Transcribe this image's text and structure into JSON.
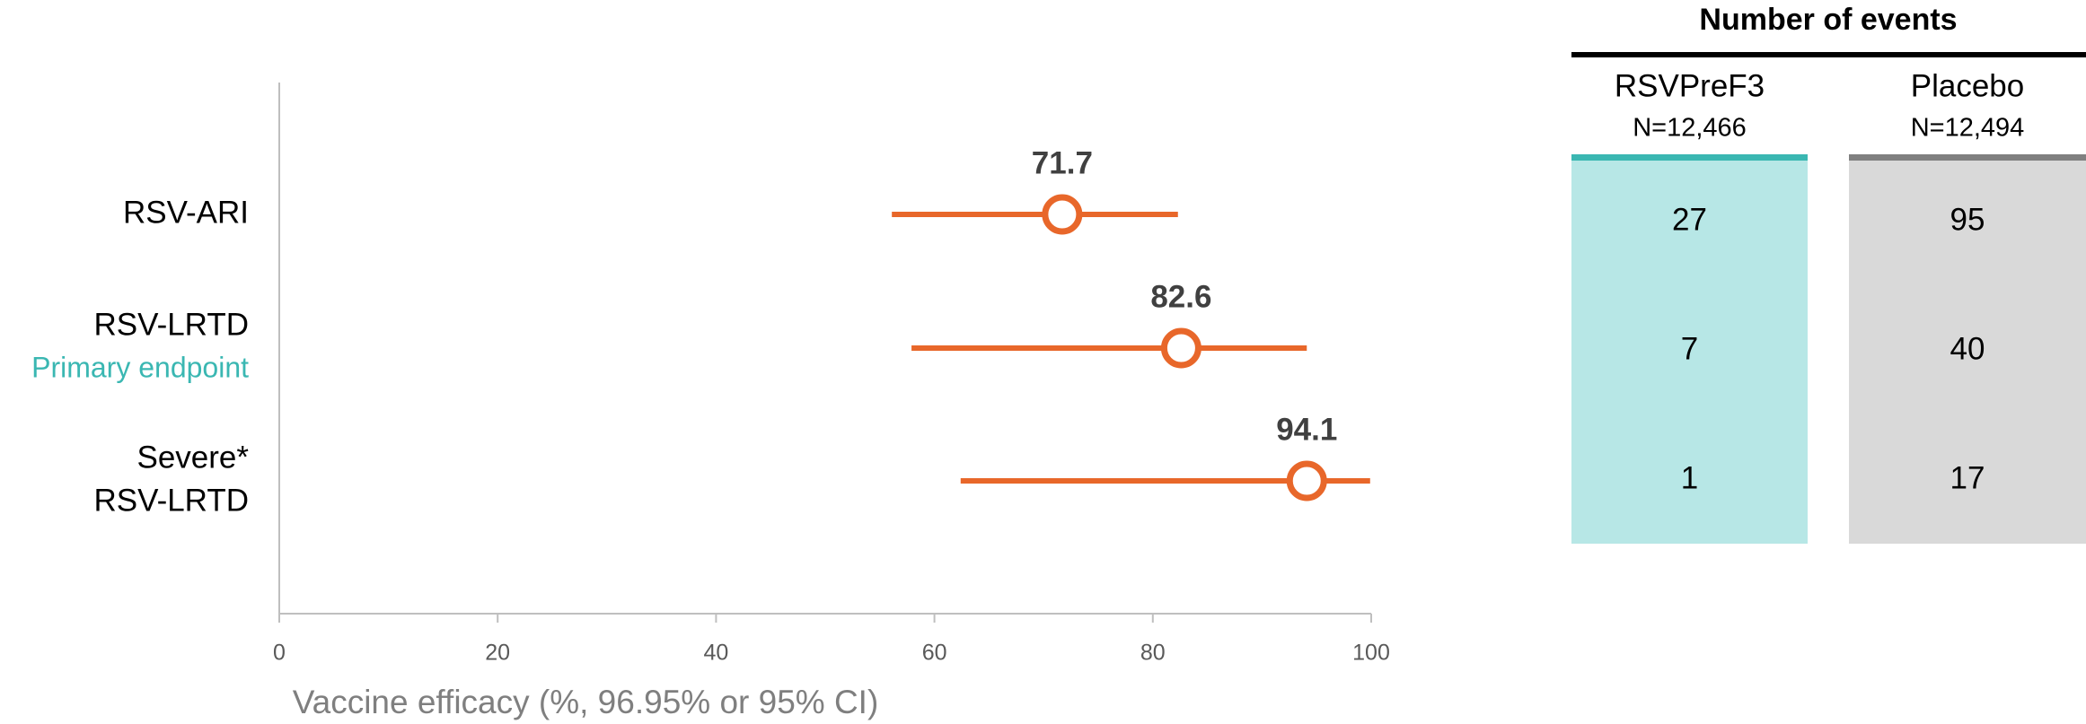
{
  "chart_data": {
    "type": "forest",
    "categories": [
      [
        "RSV-ARI"
      ],
      [
        "RSV-LRTD"
      ],
      [
        "Severe*",
        "RSV-LRTD"
      ]
    ],
    "annotations": [
      {
        "category": 1,
        "text": "Primary endpoint"
      }
    ],
    "values": [
      71.7,
      82.6,
      94.1
    ],
    "ci_low": [
      56.1,
      57.9,
      62.4
    ],
    "ci_high": [
      82.3,
      94.1,
      99.9
    ],
    "color": "#e8672a",
    "xlim": [
      0,
      100
    ],
    "xticks": [
      0,
      20,
      40,
      60,
      80,
      100
    ],
    "xlabel": "Vaccine efficacy (%, 96.95% or 95% CI)"
  },
  "events_table": {
    "title": "Number of events",
    "columns": [
      {
        "name": "RSVPreF3",
        "n": "N=12,466",
        "color": "#b7e7e6",
        "accent": "#3ab7b2",
        "values": [
          27,
          7,
          1
        ]
      },
      {
        "name": "Placebo",
        "n": "N=12,494",
        "color": "#d9d9d9",
        "accent": "#808080",
        "values": [
          95,
          40,
          17
        ]
      }
    ]
  }
}
